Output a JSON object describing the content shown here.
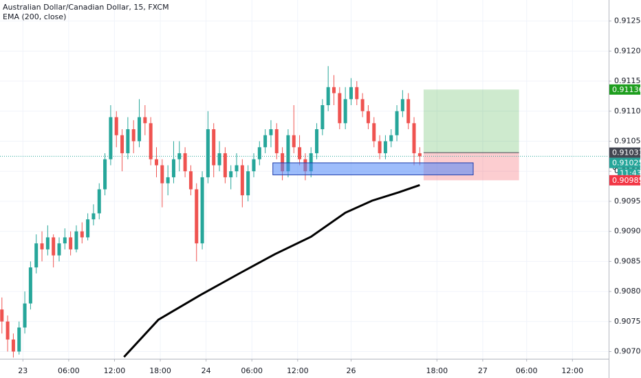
{
  "chart_data": {
    "type": "candlestick",
    "title": "Australian Dollar/Canadian Dollar, 15, FXCM",
    "up_color": "#26a69a",
    "down_color": "#ef5350",
    "x": [
      -11,
      -8,
      -5,
      -2,
      1,
      4,
      7,
      10,
      13,
      16,
      19,
      22,
      25,
      28,
      31,
      34,
      37,
      40,
      43,
      46,
      49,
      52,
      55,
      58,
      61,
      64,
      67,
      70,
      73,
      76,
      79,
      82,
      85,
      88,
      91,
      94,
      97,
      100,
      103,
      106,
      109,
      112,
      115,
      118,
      121,
      124,
      127,
      130,
      133,
      136,
      139,
      142,
      145,
      148,
      151,
      154,
      157,
      160,
      163,
      166,
      169,
      172,
      175,
      178,
      181,
      184,
      187,
      190,
      193,
      196,
      199,
      202,
      205,
      208
    ],
    "open": [
      0.9077,
      0.9075,
      0.9072,
      0.907,
      0.9074,
      0.9078,
      0.9084,
      0.9088,
      0.9087,
      0.9089,
      0.9086,
      0.9088,
      0.9089,
      0.9087,
      0.909,
      0.9089,
      0.9092,
      0.9093,
      0.9097,
      0.9102,
      0.9109,
      0.9106,
      0.9103,
      0.9107,
      0.9105,
      0.9109,
      0.9108,
      0.9102,
      0.9101,
      0.9098,
      0.9099,
      0.9102,
      0.9103,
      0.91,
      0.9097,
      0.9088,
      0.9099,
      0.9107,
      0.9101,
      0.9103,
      0.9099,
      0.91,
      0.9101,
      0.9096,
      0.91,
      0.9102,
      0.9104,
      0.9106,
      0.9107,
      0.9103,
      0.91,
      0.9106,
      0.9104,
      0.9102,
      0.91,
      0.9103,
      0.9107,
      0.9111,
      0.9114,
      0.9113,
      0.9108,
      0.9112,
      0.9114,
      0.9112,
      0.911,
      0.9108,
      0.9105,
      0.9103,
      0.9105,
      0.9106,
      0.911,
      0.9112,
      0.9108,
      0.9103
    ],
    "high": [
      0.9079,
      0.9076,
      0.9073,
      0.9075,
      0.908,
      0.9085,
      0.90895,
      0.909,
      0.9091,
      0.90895,
      0.9089,
      0.90905,
      0.909,
      0.9091,
      0.90915,
      0.9093,
      0.90945,
      0.9098,
      0.9103,
      0.9111,
      0.911,
      0.9107,
      0.9109,
      0.91085,
      0.9112,
      0.9111,
      0.9109,
      0.9104,
      0.9102,
      0.9101,
      0.9105,
      0.9105,
      0.9104,
      0.9101,
      0.9098,
      0.91,
      0.911,
      0.9108,
      0.9105,
      0.9104,
      0.9101,
      0.9103,
      0.9102,
      0.9101,
      0.9103,
      0.9105,
      0.9107,
      0.91085,
      0.9108,
      0.9104,
      0.9107,
      0.9111,
      0.9106,
      0.9103,
      0.9104,
      0.9108,
      0.9112,
      0.91175,
      0.9116,
      0.9114,
      0.9114,
      0.91155,
      0.9115,
      0.9113,
      0.9111,
      0.9109,
      0.9106,
      0.9106,
      0.9107,
      0.9111,
      0.91135,
      0.9113,
      0.9109,
      0.9104
    ],
    "low": [
      0.9073,
      0.907,
      0.9069,
      0.90695,
      0.9073,
      0.9077,
      0.9083,
      0.9085,
      0.9086,
      0.9084,
      0.9085,
      0.9087,
      0.9086,
      0.90865,
      0.9088,
      0.90885,
      0.9091,
      0.9092,
      0.9096,
      0.9101,
      0.9104,
      0.91,
      0.9102,
      0.9103,
      0.9104,
      0.9106,
      0.9101,
      0.9099,
      0.9094,
      0.9096,
      0.9098,
      0.91,
      0.9099,
      0.9096,
      0.9085,
      0.9087,
      0.9098,
      0.9099,
      0.91,
      0.9098,
      0.9097,
      0.9099,
      0.9094,
      0.9095,
      0.9099,
      0.9101,
      0.9103,
      0.9104,
      0.9102,
      0.90985,
      0.9099,
      0.9103,
      0.9101,
      0.90985,
      0.9099,
      0.9102,
      0.9106,
      0.911,
      0.9111,
      0.9107,
      0.9107,
      0.9111,
      0.9111,
      0.9109,
      0.9107,
      0.9104,
      0.9102,
      0.9102,
      0.9104,
      0.9105,
      0.9109,
      0.9107,
      0.9101,
      0.9101
    ],
    "close": [
      0.9075,
      0.9072,
      0.907,
      0.9074,
      0.9078,
      0.9084,
      0.9088,
      0.9087,
      0.9089,
      0.9086,
      0.9088,
      0.9089,
      0.9087,
      0.909,
      0.9089,
      0.9092,
      0.9093,
      0.9097,
      0.9102,
      0.9109,
      0.9106,
      0.9103,
      0.9107,
      0.9105,
      0.9109,
      0.9108,
      0.9102,
      0.9101,
      0.9098,
      0.9099,
      0.9102,
      0.9103,
      0.91,
      0.9097,
      0.9088,
      0.9099,
      0.9107,
      0.9101,
      0.9103,
      0.9099,
      0.91,
      0.9101,
      0.9096,
      0.91,
      0.9102,
      0.9104,
      0.9106,
      0.9107,
      0.9103,
      0.91,
      0.9106,
      0.9104,
      0.9102,
      0.91,
      0.9103,
      0.9107,
      0.9111,
      0.9114,
      0.9113,
      0.9108,
      0.9112,
      0.9114,
      0.9112,
      0.911,
      0.9108,
      0.9105,
      0.9103,
      0.9105,
      0.9106,
      0.911,
      0.9112,
      0.9108,
      0.9103,
      0.91025
    ],
    "indicator": {
      "name": "EMA (200, close)",
      "color": "#000000",
      "x": [
        53,
        71,
        93,
        114,
        132,
        151,
        169,
        183,
        197,
        208
      ],
      "values": [
        0.90691,
        0.90753,
        0.90794,
        0.90831,
        0.90862,
        0.90891,
        0.90931,
        0.90951,
        0.90965,
        0.90977
      ]
    },
    "zone": {
      "x": [
        131,
        236
      ],
      "y": [
        0.90994,
        0.91014
      ],
      "color": "#4f86f7"
    },
    "position": {
      "x": [
        210,
        260
      ],
      "entry": 0.91031,
      "target": 0.91136,
      "stop": 0.90985,
      "entry_color": "#434651",
      "target_color": "#1e9e1e",
      "stop_color": "#f23645"
    },
    "current_price": {
      "value": 0.91025,
      "color": "#26a69a",
      "countdown": "11:43"
    },
    "partial_label": "0",
    "xlim": [
      -12,
      307
    ],
    "xticks": [
      {
        "value": 0,
        "label": "23"
      },
      {
        "value": 24,
        "label": "06:00"
      },
      {
        "value": 48,
        "label": "12:00"
      },
      {
        "value": 72,
        "label": "18:00"
      },
      {
        "value": 96,
        "label": "24"
      },
      {
        "value": 120,
        "label": "06:00"
      },
      {
        "value": 144,
        "label": "12:00"
      },
      {
        "value": 172,
        "label": "26"
      },
      {
        "value": 217,
        "label": "18:00"
      },
      {
        "value": 241,
        "label": "27"
      },
      {
        "value": 264,
        "label": "06:00"
      },
      {
        "value": 288,
        "label": "12:00"
      }
    ],
    "ylim": [
      0.90688,
      0.91285
    ],
    "yticks": [
      {
        "value": 0.9125,
        "label": "0.91250"
      },
      {
        "value": 0.912,
        "label": "0.91200"
      },
      {
        "value": 0.9115,
        "label": "0.91150"
      },
      {
        "value": 0.911,
        "label": "0.91100"
      },
      {
        "value": 0.9105,
        "label": "0.91050"
      },
      {
        "value": 0.91,
        "label": "0.91000"
      },
      {
        "value": 0.9095,
        "label": "0.90950"
      },
      {
        "value": 0.909,
        "label": "0.90900"
      },
      {
        "value": 0.9085,
        "label": "0.90850"
      },
      {
        "value": 0.908,
        "label": "0.90800"
      },
      {
        "value": 0.9075,
        "label": "0.90750"
      },
      {
        "value": 0.907,
        "label": "0.90700"
      }
    ],
    "grid": true
  }
}
